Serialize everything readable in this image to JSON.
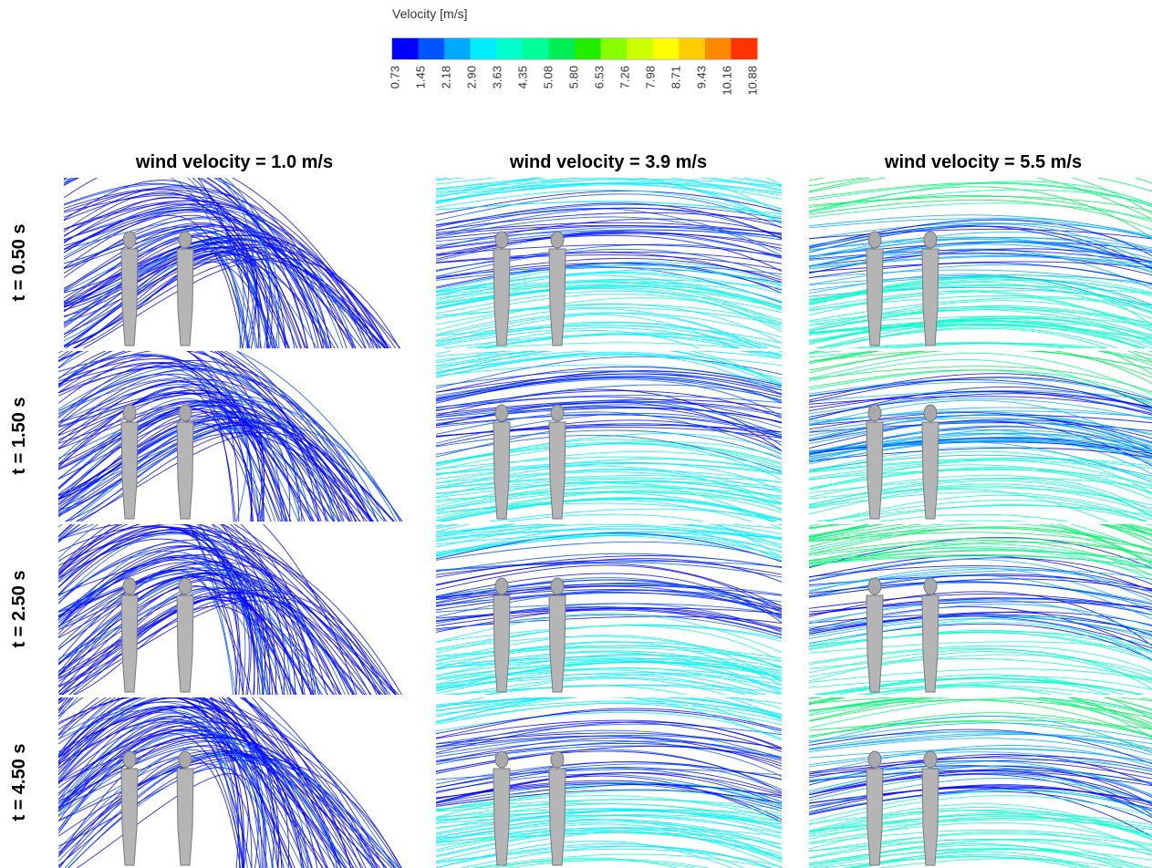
{
  "legend": {
    "title": "Velocity [m/s]",
    "ticks": [
      "0.73",
      "1.45",
      "2.18",
      "2.90",
      "3.63",
      "4.35",
      "5.08",
      "5.80",
      "6.53",
      "7.26",
      "7.98",
      "8.71",
      "9.43",
      "10.16",
      "10.88"
    ],
    "colors": [
      "#0000ff",
      "#0055ff",
      "#00aaff",
      "#00eeff",
      "#00ffcc",
      "#00ff99",
      "#00ee55",
      "#22ee00",
      "#88ff00",
      "#ccff00",
      "#ffff00",
      "#ffcc00",
      "#ff8800",
      "#ff3300"
    ]
  },
  "columns": [
    "wind velocity = 1.0 m/s",
    "wind velocity = 3.9 m/s",
    "wind velocity = 5.5 m/s"
  ],
  "rows": [
    "t = 0.50 s",
    "t = 1.50 s",
    "t = 2.50 s",
    "t = 4.50 s"
  ]
}
